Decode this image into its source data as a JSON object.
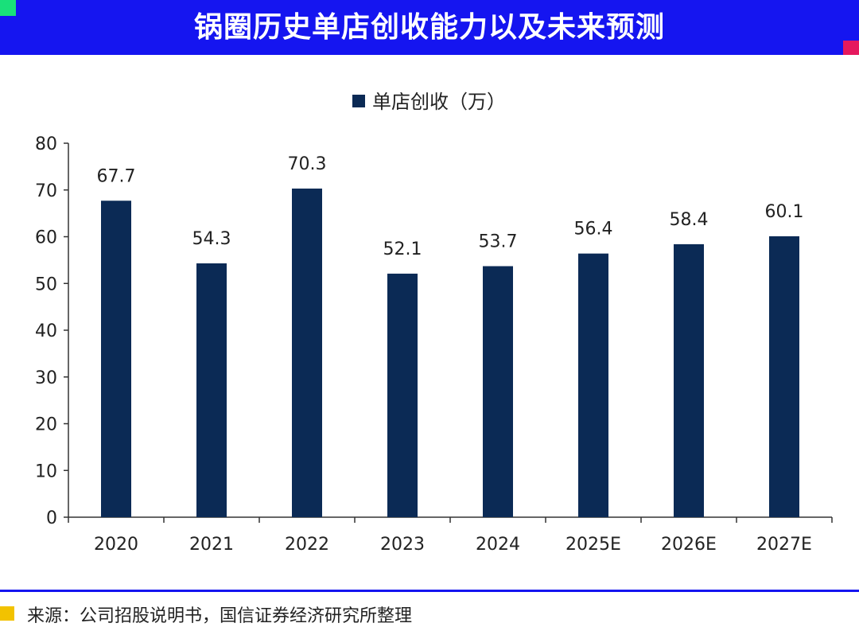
{
  "header": {
    "title": "锅圈历史单店创收能力以及未来预测"
  },
  "footer": {
    "source": "来源：公司招股说明书，国信证券经济研究所整理"
  },
  "colors": {
    "header": "#1515f0",
    "bar": "#0b2a55",
    "accent_green": "#19e07a",
    "accent_red": "#e5195e",
    "footer_marker": "#f2c200"
  },
  "chart_data": {
    "type": "bar",
    "categories": [
      "2020",
      "2021",
      "2022",
      "2023",
      "2024",
      "2025E",
      "2026E",
      "2027E"
    ],
    "series": [
      {
        "name": "单店创收（万）",
        "values": [
          67.7,
          54.3,
          70.3,
          52.1,
          53.7,
          56.4,
          58.4,
          60.1
        ]
      }
    ],
    "data_labels": [
      "67.7",
      "54.3",
      "70.3",
      "52.1",
      "53.7",
      "56.4",
      "58.4",
      "60.1"
    ],
    "ylim": [
      0,
      80
    ],
    "yticks": [
      0,
      10,
      20,
      30,
      40,
      50,
      60,
      70,
      80
    ],
    "legend": "top-center",
    "grid": false
  }
}
